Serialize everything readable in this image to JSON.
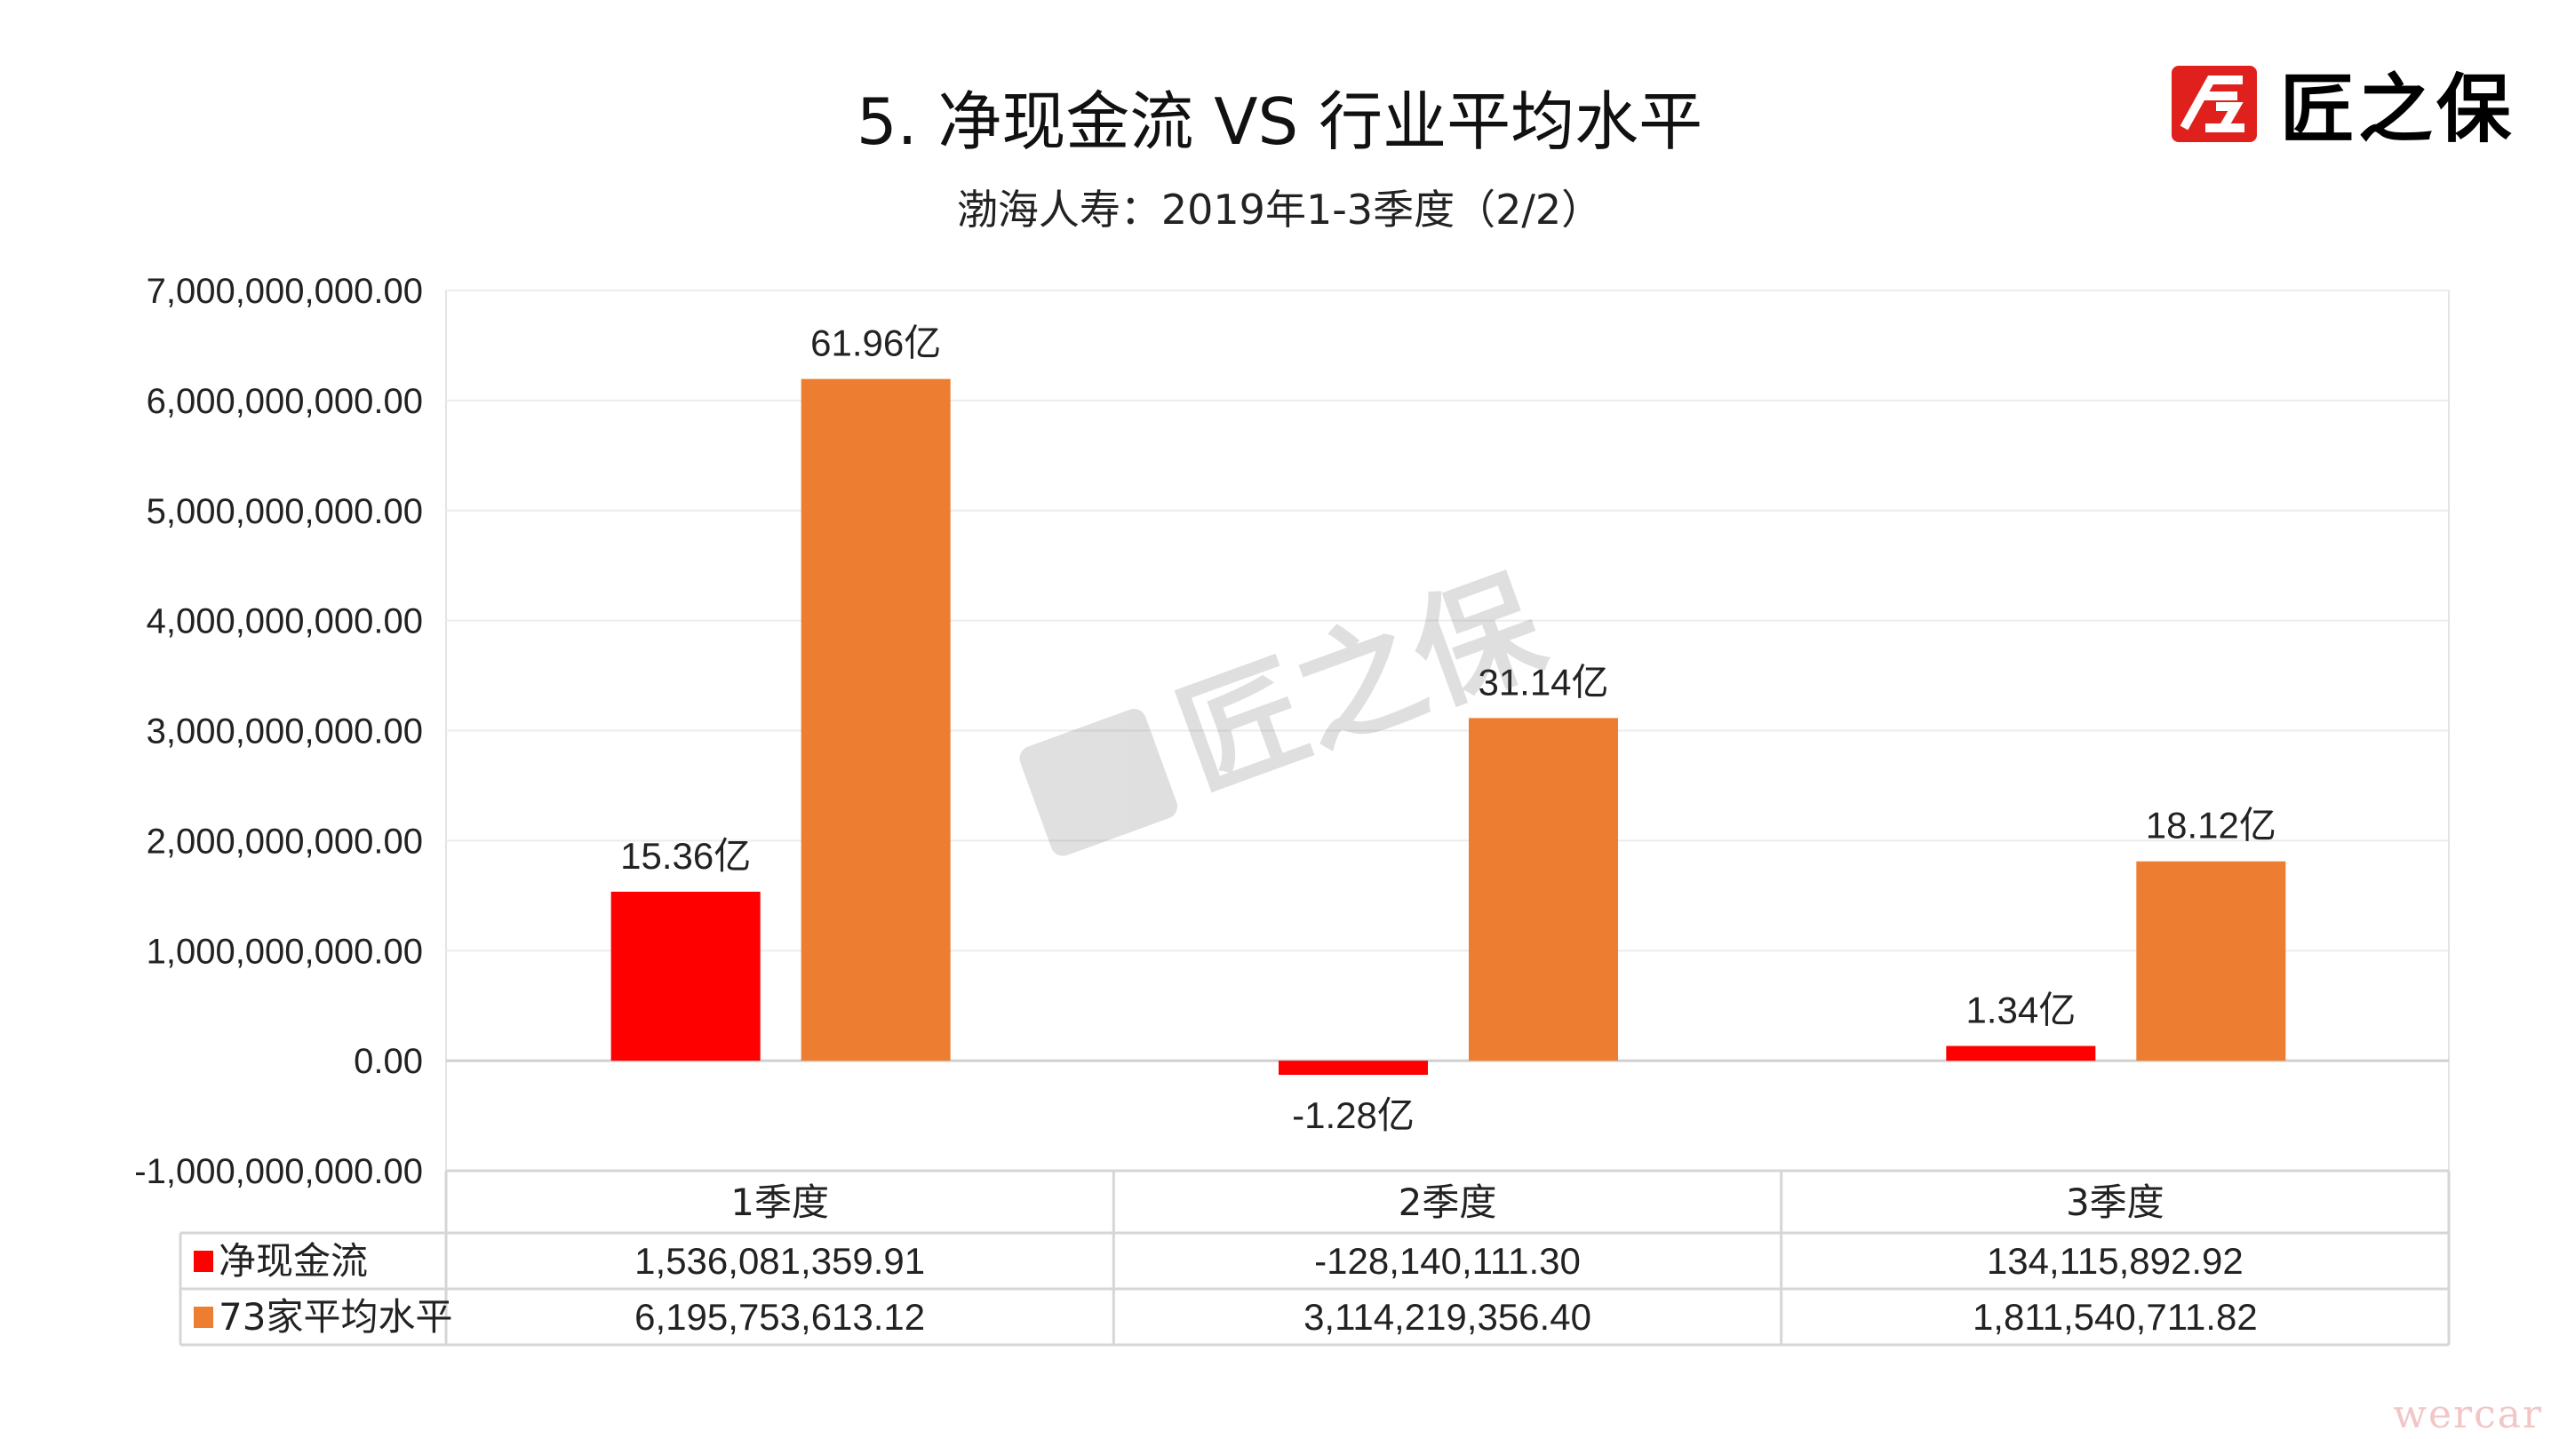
{
  "header": {
    "title": "5. 净现金流  VS  行业平均水平",
    "subtitle": "渤海人寿：2019年1-3季度（2/2）",
    "logo_text": "匠之保",
    "watermark_text": "匠之保",
    "corner_watermark": "wercar"
  },
  "chart_data": {
    "type": "bar",
    "title": "5. 净现金流  VS  行业平均水平",
    "subtitle": "渤海人寿：2019年1-3季度（2/2）",
    "categories": [
      "1季度",
      "2季度",
      "3季度"
    ],
    "series": [
      {
        "name": "净现金流",
        "color": "#ff0000",
        "values": [
          1536081359.91,
          -128140111.3,
          134115892.92
        ],
        "value_labels": [
          "1,536,081,359.91",
          "-128,140,111.30",
          "134,115,892.92"
        ],
        "data_labels": [
          "15.36亿",
          "-1.28亿",
          "1.34亿"
        ]
      },
      {
        "name": "73家平均水平",
        "color": "#ed7d31",
        "values": [
          6195753613.12,
          3114219356.4,
          1811540711.82
        ],
        "value_labels": [
          "6,195,753,613.12",
          "3,114,219,356.40",
          "1,811,540,711.82"
        ],
        "data_labels": [
          "61.96亿",
          "31.14亿",
          "18.12亿"
        ]
      }
    ],
    "ylim": [
      -1000000000,
      7000000000
    ],
    "yticks": [
      7000000000,
      6000000000,
      5000000000,
      4000000000,
      3000000000,
      2000000000,
      1000000000,
      0,
      -1000000000
    ],
    "ytick_labels": [
      "7,000,000,000.00",
      "6,000,000,000.00",
      "5,000,000,000.00",
      "4,000,000,000.00",
      "3,000,000,000.00",
      "2,000,000,000.00",
      "1,000,000,000.00",
      "0.00",
      "-1,000,000,000.00"
    ],
    "grid": true,
    "legend": "data-table-bottom"
  }
}
